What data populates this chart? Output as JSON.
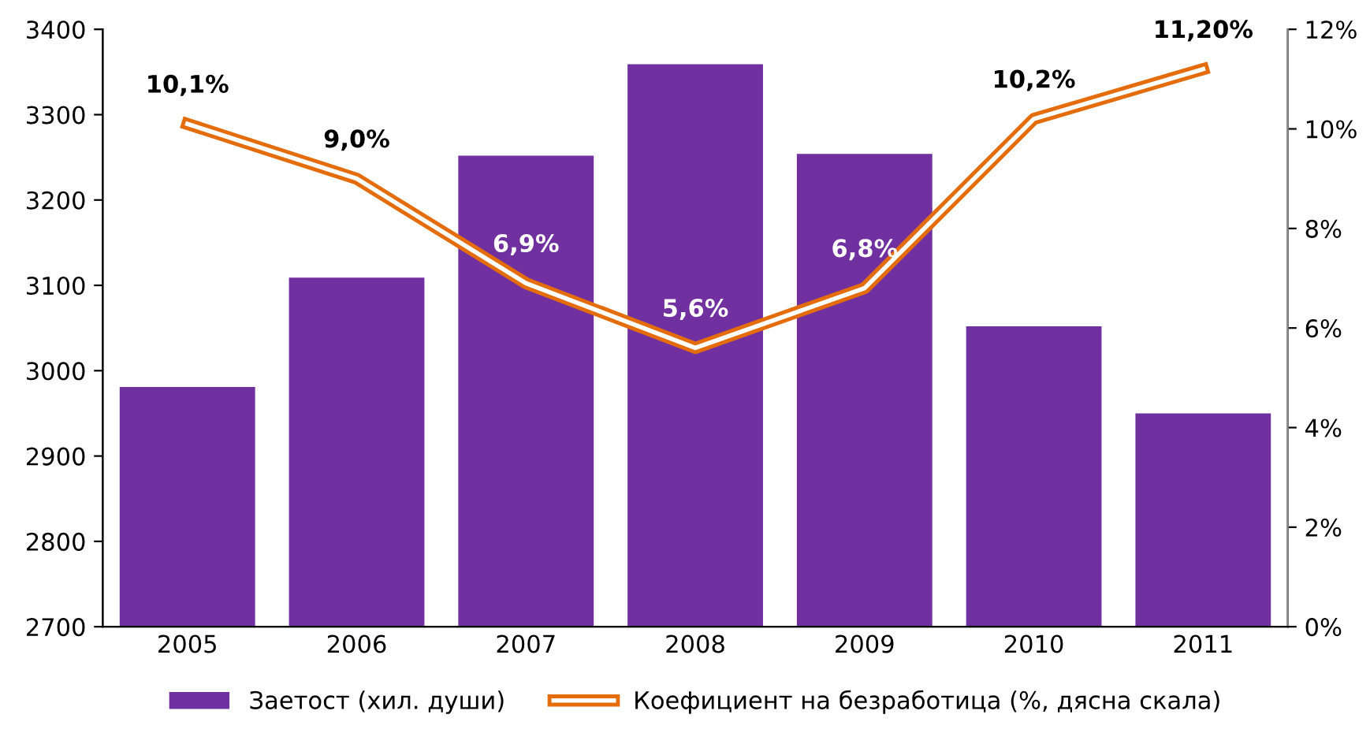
{
  "chart_data": {
    "type": "bar",
    "categories": [
      "2005",
      "2006",
      "2007",
      "2008",
      "2009",
      "2010",
      "2011"
    ],
    "series": [
      {
        "name": "Заетост (хил. души)",
        "color": "#7030a0",
        "values": [
          2981,
          3109,
          3252,
          3359,
          3254,
          3052,
          2950
        ]
      },
      {
        "name": "Коефициент на безработица (%, дясна скала)",
        "type": "line",
        "axis": "y2",
        "color": "#e46c0a",
        "values": [
          10.1,
          9.0,
          6.9,
          5.6,
          6.8,
          10.2,
          11.2
        ],
        "value_labels": [
          "10,1%",
          "9,0%",
          "6,9%",
          "5,6%",
          "6,8%",
          "10,2%",
          "11,20%"
        ]
      }
    ],
    "ylim": [
      2700,
      3400
    ],
    "yticks": [
      2700,
      2800,
      2900,
      3000,
      3100,
      3200,
      3300,
      3400
    ],
    "y2lim": [
      0,
      12
    ],
    "y2ticks": [
      {
        "value": 0,
        "label": "0%"
      },
      {
        "value": 2,
        "label": "2%"
      },
      {
        "value": 4,
        "label": "4%"
      },
      {
        "value": 6,
        "label": "6%"
      },
      {
        "value": 8,
        "label": "8%"
      },
      {
        "value": 10,
        "label": "10%"
      },
      {
        "value": 12,
        "label": "12%"
      }
    ],
    "grid": false,
    "legend": "bottom",
    "marker": "none",
    "line_style": "solid"
  }
}
